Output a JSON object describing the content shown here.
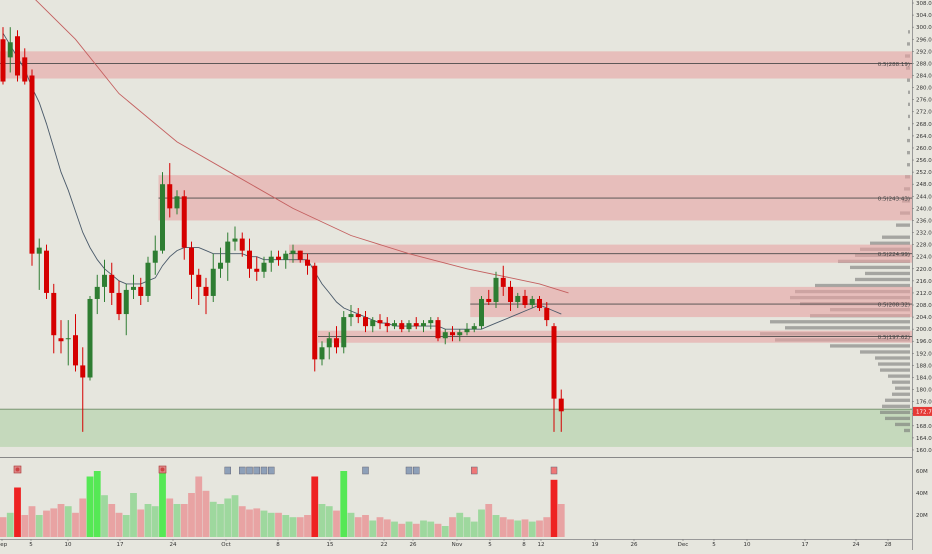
{
  "colors": {
    "background": "#e6e6de",
    "up_candle": "#2e7d32",
    "down_candle": "#d50000",
    "zone_fill": "#e8a3a3",
    "support_fill": "#b9d4b0",
    "level_line": "#4a4a4a",
    "ma_slow": "#c46060",
    "ma_fast": "#4a5a6a",
    "vol_up": "#9ed89e",
    "vol_down": "#e8a3a3",
    "vol_up_hot": "#55e855",
    "vol_down_hot": "#ee2222",
    "profile": "#707070",
    "price_tag": "#e53935"
  },
  "chart_data": {
    "type": "candlestick",
    "title": "",
    "price_axis": {
      "labels": [
        "308.00",
        "304.00",
        "300.00",
        "296.00",
        "292.00",
        "288.00",
        "284.00",
        "280.00",
        "276.00",
        "272.00",
        "268.00",
        "264.00",
        "260.00",
        "256.00",
        "252.00",
        "248.00",
        "244.00",
        "240.00",
        "236.00",
        "232.00",
        "228.00",
        "224.00",
        "220.00",
        "216.00",
        "212.00",
        "208.00",
        "204.00",
        "200.00",
        "196.00",
        "192.00",
        "188.00",
        "184.00",
        "180.00",
        "176.00",
        "172.00",
        "168.00",
        "164.00",
        "160.00"
      ],
      "range": [
        158,
        309
      ],
      "current_price": 172.76,
      "current_price_label": "172.76"
    },
    "volume_axis": {
      "labels": [
        "60M",
        "40M",
        "20M"
      ],
      "max": 70
    },
    "time_axis": {
      "labels": [
        "Sep",
        "5",
        "10",
        "17",
        "24",
        "Oct",
        "8",
        "15",
        "22",
        "26",
        "Nov",
        "5",
        "8",
        "12",
        "19",
        "26",
        "Dec",
        "5",
        "10",
        "17",
        "24",
        "28"
      ]
    },
    "candles": [
      {
        "o": 296.0,
        "h": 300.0,
        "l": 281.0,
        "c": 282.0
      },
      {
        "o": 290.0,
        "h": 300.0,
        "l": 285.0,
        "c": 295.0
      },
      {
        "o": 297.0,
        "h": 299.0,
        "l": 282.0,
        "c": 284.0
      },
      {
        "o": 290.0,
        "h": 293.0,
        "l": 281.0,
        "c": 282.0
      },
      {
        "o": 284.0,
        "h": 286.0,
        "l": 221.0,
        "c": 225.0
      },
      {
        "o": 225.0,
        "h": 230.0,
        "l": 213.0,
        "c": 227.0
      },
      {
        "o": 226.0,
        "h": 228.0,
        "l": 210.0,
        "c": 212.0
      },
      {
        "o": 212.0,
        "h": 215.0,
        "l": 192.0,
        "c": 198.0
      },
      {
        "o": 197.0,
        "h": 203.0,
        "l": 192.0,
        "c": 196.0
      },
      {
        "o": 197.0,
        "h": 203.0,
        "l": 188.0,
        "c": 197.0
      },
      {
        "o": 198.0,
        "h": 205.0,
        "l": 186.0,
        "c": 188.0
      },
      {
        "o": 188.0,
        "h": 194.0,
        "l": 166.0,
        "c": 184.0
      },
      {
        "o": 184.0,
        "h": 211.0,
        "l": 183.0,
        "c": 210.0
      },
      {
        "o": 210.0,
        "h": 218.0,
        "l": 205.0,
        "c": 214.0
      },
      {
        "o": 214.0,
        "h": 223.0,
        "l": 209.0,
        "c": 218.0
      },
      {
        "o": 218.0,
        "h": 222.0,
        "l": 208.0,
        "c": 212.0
      },
      {
        "o": 212.0,
        "h": 216.0,
        "l": 203.0,
        "c": 205.0
      },
      {
        "o": 205.0,
        "h": 215.0,
        "l": 198.0,
        "c": 213.0
      },
      {
        "o": 213.0,
        "h": 218.0,
        "l": 210.0,
        "c": 214.0
      },
      {
        "o": 214.0,
        "h": 217.0,
        "l": 208.0,
        "c": 211.0
      },
      {
        "o": 211.0,
        "h": 224.0,
        "l": 209.0,
        "c": 222.0
      },
      {
        "o": 222.0,
        "h": 231.0,
        "l": 218.0,
        "c": 226.0
      },
      {
        "o": 226.0,
        "h": 252.0,
        "l": 225.0,
        "c": 248.0
      },
      {
        "o": 248.0,
        "h": 255.0,
        "l": 237.0,
        "c": 240.0
      },
      {
        "o": 240.0,
        "h": 246.0,
        "l": 238.0,
        "c": 244.0
      },
      {
        "o": 244.0,
        "h": 246.0,
        "l": 223.0,
        "c": 227.0
      },
      {
        "o": 227.0,
        "h": 229.0,
        "l": 210.0,
        "c": 218.0
      },
      {
        "o": 218.0,
        "h": 220.0,
        "l": 208.0,
        "c": 214.0
      },
      {
        "o": 214.0,
        "h": 217.0,
        "l": 205.0,
        "c": 211.0
      },
      {
        "o": 211.0,
        "h": 225.0,
        "l": 209.0,
        "c": 220.0
      },
      {
        "o": 220.0,
        "h": 227.0,
        "l": 217.0,
        "c": 222.0
      },
      {
        "o": 222.0,
        "h": 232.0,
        "l": 216.0,
        "c": 229.0
      },
      {
        "o": 229.0,
        "h": 234.0,
        "l": 226.0,
        "c": 230.0
      },
      {
        "o": 230.0,
        "h": 232.0,
        "l": 224.0,
        "c": 226.0
      },
      {
        "o": 226.0,
        "h": 230.0,
        "l": 217.0,
        "c": 220.0
      },
      {
        "o": 220.0,
        "h": 224.0,
        "l": 216.0,
        "c": 219.0
      },
      {
        "o": 219.0,
        "h": 224.0,
        "l": 217.0,
        "c": 222.0
      },
      {
        "o": 222.0,
        "h": 226.0,
        "l": 219.0,
        "c": 224.0
      },
      {
        "o": 224.0,
        "h": 226.0,
        "l": 221.0,
        "c": 223.0
      },
      {
        "o": 223.0,
        "h": 226.0,
        "l": 220.0,
        "c": 225.0
      },
      {
        "o": 225.0,
        "h": 228.0,
        "l": 222.0,
        "c": 226.0
      },
      {
        "o": 226.0,
        "h": 226.0,
        "l": 222.0,
        "c": 223.0
      },
      {
        "o": 223.0,
        "h": 225.0,
        "l": 218.0,
        "c": 221.0
      },
      {
        "o": 221.0,
        "h": 222.0,
        "l": 186.0,
        "c": 190.0
      },
      {
        "o": 190.0,
        "h": 196.0,
        "l": 188.0,
        "c": 194.0
      },
      {
        "o": 194.0,
        "h": 199.0,
        "l": 190.0,
        "c": 197.0
      },
      {
        "o": 197.0,
        "h": 201.0,
        "l": 192.0,
        "c": 194.0
      },
      {
        "o": 194.0,
        "h": 206.0,
        "l": 192.0,
        "c": 204.0
      },
      {
        "o": 204.0,
        "h": 208.0,
        "l": 201.0,
        "c": 205.0
      },
      {
        "o": 205.0,
        "h": 207.0,
        "l": 202.0,
        "c": 204.0
      },
      {
        "o": 204.0,
        "h": 206.0,
        "l": 199.0,
        "c": 201.0
      },
      {
        "o": 201.0,
        "h": 204.0,
        "l": 199.0,
        "c": 203.0
      },
      {
        "o": 203.0,
        "h": 205.0,
        "l": 200.0,
        "c": 202.0
      },
      {
        "o": 202.0,
        "h": 204.0,
        "l": 199.0,
        "c": 201.0
      },
      {
        "o": 201.0,
        "h": 203.0,
        "l": 200.0,
        "c": 202.0
      },
      {
        "o": 202.0,
        "h": 203.0,
        "l": 199.0,
        "c": 200.0
      },
      {
        "o": 200.0,
        "h": 203.0,
        "l": 199.0,
        "c": 202.0
      },
      {
        "o": 202.0,
        "h": 204.0,
        "l": 200.0,
        "c": 201.0
      },
      {
        "o": 201.0,
        "h": 203.0,
        "l": 199.0,
        "c": 202.0
      },
      {
        "o": 202.0,
        "h": 204.0,
        "l": 200.0,
        "c": 203.0
      },
      {
        "o": 203.0,
        "h": 204.0,
        "l": 196.0,
        "c": 197.0
      },
      {
        "o": 197.0,
        "h": 200.0,
        "l": 195.0,
        "c": 199.0
      },
      {
        "o": 199.0,
        "h": 201.0,
        "l": 196.0,
        "c": 198.0
      },
      {
        "o": 198.0,
        "h": 200.0,
        "l": 196.0,
        "c": 199.0
      },
      {
        "o": 199.0,
        "h": 202.0,
        "l": 198.0,
        "c": 200.0
      },
      {
        "o": 200.0,
        "h": 202.0,
        "l": 199.0,
        "c": 201.0
      },
      {
        "o": 201.0,
        "h": 211.0,
        "l": 200.0,
        "c": 210.0
      },
      {
        "o": 210.0,
        "h": 213.0,
        "l": 208.0,
        "c": 209.0
      },
      {
        "o": 209.0,
        "h": 219.0,
        "l": 207.0,
        "c": 217.0
      },
      {
        "o": 217.0,
        "h": 221.0,
        "l": 211.0,
        "c": 214.0
      },
      {
        "o": 214.0,
        "h": 216.0,
        "l": 206.0,
        "c": 209.0
      },
      {
        "o": 209.0,
        "h": 212.0,
        "l": 207.0,
        "c": 211.0
      },
      {
        "o": 211.0,
        "h": 213.0,
        "l": 207.0,
        "c": 208.0
      },
      {
        "o": 208.0,
        "h": 211.0,
        "l": 207.0,
        "c": 210.0
      },
      {
        "o": 210.0,
        "h": 211.0,
        "l": 206.0,
        "c": 207.0
      },
      {
        "o": 207.0,
        "h": 209.0,
        "l": 201.0,
        "c": 203.0
      },
      {
        "o": 201.0,
        "h": 202.0,
        "l": 166.0,
        "c": 177.0
      },
      {
        "o": 177.0,
        "h": 180.0,
        "l": 166.0,
        "c": 172.8
      }
    ],
    "ma_fast": [
      298,
      294,
      290,
      286,
      280,
      275,
      268,
      260,
      252,
      246,
      239,
      232,
      227,
      223,
      220,
      218,
      216,
      215,
      215,
      215,
      216,
      217,
      221,
      224,
      226,
      227,
      227,
      227,
      226,
      225,
      225,
      225,
      225,
      225,
      224,
      224,
      223,
      223,
      223,
      223,
      223,
      223,
      223,
      219,
      215,
      212,
      209,
      207,
      206,
      205,
      204,
      203,
      202,
      202,
      201,
      201,
      201,
      201,
      201,
      201,
      201,
      200,
      200,
      200,
      200,
      200,
      200,
      201,
      202,
      203,
      204,
      205,
      206,
      207,
      208,
      207,
      206,
      205
    ],
    "ma_slow": [
      {
        "i": 2,
        "v": 315
      },
      {
        "i": 10,
        "v": 296
      },
      {
        "i": 16,
        "v": 278
      },
      {
        "i": 24,
        "v": 262
      },
      {
        "i": 32,
        "v": 251
      },
      {
        "i": 40,
        "v": 240
      },
      {
        "i": 48,
        "v": 231
      },
      {
        "i": 56,
        "v": 225
      },
      {
        "i": 64,
        "v": 220
      },
      {
        "i": 70,
        "v": 217
      },
      {
        "i": 74,
        "v": 215
      },
      {
        "i": 78,
        "v": 212
      }
    ],
    "zones": [
      {
        "top": 292.0,
        "bottom": 283.0,
        "line": 288.0,
        "label": "0.5(288.19)"
      },
      {
        "top": 251.0,
        "bottom": 236.0,
        "line": 243.4,
        "label": "0.5(243.43)"
      },
      {
        "top": 228.0,
        "bottom": 222.0,
        "line": 225.0,
        "label": "0.5(224.99)"
      },
      {
        "top": 214.0,
        "bottom": 204.0,
        "line": 208.3,
        "label": "0.5(208.32)"
      },
      {
        "top": 199.5,
        "bottom": 195.5,
        "line": 197.6,
        "label": "0.5(197.62)"
      }
    ],
    "support_zone": {
      "top": 173.5,
      "bottom": 161.0
    },
    "volumes": [
      18,
      22,
      45,
      20,
      28,
      20,
      24,
      26,
      30,
      28,
      22,
      35,
      55,
      60,
      38,
      30,
      22,
      20,
      40,
      25,
      30,
      28,
      64,
      35,
      30,
      30,
      40,
      55,
      42,
      32,
      30,
      35,
      38,
      28,
      25,
      26,
      24,
      22,
      22,
      20,
      18,
      18,
      20,
      55,
      30,
      28,
      24,
      60,
      22,
      18,
      20,
      15,
      18,
      16,
      14,
      12,
      14,
      12,
      15,
      14,
      12,
      10,
      18,
      22,
      18,
      14,
      25,
      30,
      20,
      18,
      16,
      15,
      16,
      14,
      15,
      18,
      52,
      30
    ],
    "hot_volumes": [
      2,
      12,
      13,
      22,
      43,
      47,
      76
    ],
    "volume_markers": [
      {
        "i": 2,
        "kind": "circle",
        "color": "#c44"
      },
      {
        "i": 22,
        "kind": "circle",
        "color": "#c44"
      },
      {
        "i": 31,
        "kind": "square",
        "color": "#8ea0b8"
      },
      {
        "i": 33,
        "kind": "square",
        "color": "#8ea0b8"
      },
      {
        "i": 34,
        "kind": "square",
        "color": "#8ea0b8"
      },
      {
        "i": 35,
        "kind": "square",
        "color": "#8ea0b8"
      },
      {
        "i": 36,
        "kind": "square",
        "color": "#8ea0b8"
      },
      {
        "i": 37,
        "kind": "square",
        "color": "#8ea0b8"
      },
      {
        "i": 50,
        "kind": "square",
        "color": "#8ea0b8"
      },
      {
        "i": 56,
        "kind": "square",
        "color": "#8ea0b8"
      },
      {
        "i": 57,
        "kind": "square",
        "color": "#8ea0b8"
      },
      {
        "i": 65,
        "kind": "square",
        "color": "#ee7777"
      },
      {
        "i": 76,
        "kind": "square",
        "color": "#ee7777"
      }
    ],
    "volume_profile": [
      {
        "p": 298,
        "v": 2
      },
      {
        "p": 294,
        "v": 3
      },
      {
        "p": 290,
        "v": 5
      },
      {
        "p": 286,
        "v": 4
      },
      {
        "p": 282,
        "v": 3
      },
      {
        "p": 278,
        "v": 2
      },
      {
        "p": 274,
        "v": 2
      },
      {
        "p": 270,
        "v": 2
      },
      {
        "p": 266,
        "v": 2
      },
      {
        "p": 262,
        "v": 3
      },
      {
        "p": 258,
        "v": 3
      },
      {
        "p": 254,
        "v": 3
      },
      {
        "p": 250,
        "v": 5
      },
      {
        "p": 246,
        "v": 6
      },
      {
        "p": 242,
        "v": 8
      },
      {
        "p": 238,
        "v": 10
      },
      {
        "p": 234,
        "v": 14
      },
      {
        "p": 230,
        "v": 28
      },
      {
        "p": 228,
        "v": 40
      },
      {
        "p": 226,
        "v": 50
      },
      {
        "p": 224,
        "v": 55
      },
      {
        "p": 222,
        "v": 72
      },
      {
        "p": 220,
        "v": 60
      },
      {
        "p": 218,
        "v": 45
      },
      {
        "p": 216,
        "v": 55
      },
      {
        "p": 214,
        "v": 95
      },
      {
        "p": 212,
        "v": 115
      },
      {
        "p": 210,
        "v": 120
      },
      {
        "p": 208,
        "v": 110
      },
      {
        "p": 206,
        "v": 80
      },
      {
        "p": 204,
        "v": 100
      },
      {
        "p": 202,
        "v": 140
      },
      {
        "p": 200,
        "v": 125
      },
      {
        "p": 198,
        "v": 150
      },
      {
        "p": 196,
        "v": 135
      },
      {
        "p": 194,
        "v": 80
      },
      {
        "p": 192,
        "v": 50
      },
      {
        "p": 190,
        "v": 35
      },
      {
        "p": 188,
        "v": 32
      },
      {
        "p": 186,
        "v": 30
      },
      {
        "p": 184,
        "v": 22
      },
      {
        "p": 182,
        "v": 18
      },
      {
        "p": 180,
        "v": 15
      },
      {
        "p": 178,
        "v": 18
      },
      {
        "p": 176,
        "v": 25
      },
      {
        "p": 174,
        "v": 28
      },
      {
        "p": 172,
        "v": 30
      },
      {
        "p": 170,
        "v": 25
      },
      {
        "p": 168,
        "v": 15
      },
      {
        "p": 166,
        "v": 6
      }
    ]
  }
}
